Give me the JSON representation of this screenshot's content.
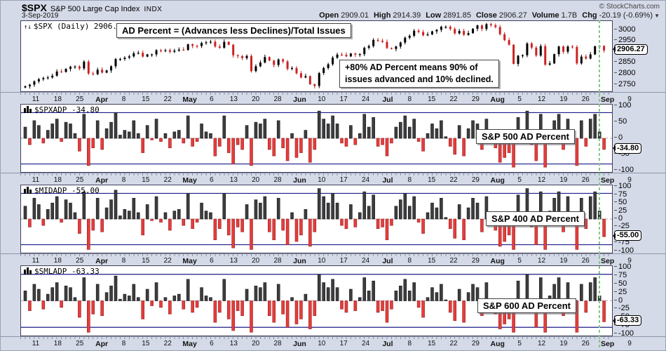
{
  "header": {
    "symbol": "$SPX",
    "name": "S&P 500 Large Cap Index",
    "exchange": "INDX",
    "copyright": "© StockCharts.com",
    "date": "3-Sep-2019",
    "quote": [
      {
        "label": "Open",
        "value": "2909.01"
      },
      {
        "label": "High",
        "value": "2914.39"
      },
      {
        "label": "Low",
        "value": "2891.85"
      },
      {
        "label": "Close",
        "value": "2906.27"
      },
      {
        "label": "Volume",
        "value": "1.7B"
      },
      {
        "label": "Chg",
        "value": "-20.19 (-0.69%)"
      }
    ],
    "chg_arrow": "▼"
  },
  "annotations": {
    "formula": "AD Percent = (Advances less Declines)/Total Issues",
    "explain": "+80% AD Percent means 90% of\nissues advanced and 10% declined.",
    "sp500": "S&P 500 AD Percent",
    "sp400": "S&P 400 AD Percent",
    "sp600": "S&P 600 AD Percent"
  },
  "panels": [
    {
      "label": "$SPX (Daily) 2906.27",
      "tag": "2906.27"
    },
    {
      "label": "$SPXADP -34.80",
      "tag": "-34.80"
    },
    {
      "label": "$MIDADP -55.00",
      "tag": "-55.00"
    },
    {
      "label": "$SMLADP -63.33",
      "tag": "-63.33"
    }
  ],
  "x_axis": {
    "labels": [
      "11",
      "18",
      "25",
      "Apr",
      "8",
      "15",
      "22",
      "May",
      "6",
      "13",
      "20",
      "28",
      "Jun",
      "10",
      "17",
      "24",
      "Jul",
      "8",
      "15",
      "22",
      "29",
      "Aug",
      "5",
      "12",
      "19",
      "26",
      "Sep",
      "9"
    ],
    "bold_indexes": [
      3,
      7,
      12,
      16,
      21,
      26
    ]
  },
  "chart_data": [
    {
      "type": "candlestick",
      "title": "$SPX (Daily)",
      "last": 2906.27,
      "ylim": [
        2720,
        3040
      ],
      "yticks": [
        3000,
        2950,
        2900,
        2850,
        2800,
        2750
      ],
      "x_tick_labels": [
        "11",
        "18",
        "25",
        "Apr",
        "8",
        "15",
        "22",
        "May",
        "6",
        "13",
        "20",
        "28",
        "Jun",
        "10",
        "17",
        "24",
        "Jul",
        "8",
        "15",
        "22",
        "29",
        "Aug",
        "5",
        "12",
        "19",
        "26",
        "Sep",
        "9"
      ],
      "close": [
        2743,
        2750,
        2765,
        2775,
        2780,
        2783,
        2791,
        2810,
        2808,
        2822,
        2832,
        2833,
        2824,
        2855,
        2801,
        2798,
        2818,
        2805,
        2815,
        2834,
        2867,
        2867,
        2873,
        2879,
        2893,
        2895,
        2878,
        2888,
        2888,
        2907,
        2906,
        2907,
        2900,
        2905,
        2910,
        2908,
        2934,
        2927,
        2926,
        2940,
        2943,
        2946,
        2924,
        2918,
        2945,
        2932,
        2884,
        2880,
        2871,
        2881,
        2812,
        2834,
        2851,
        2876,
        2860,
        2840,
        2865,
        2856,
        2822,
        2826,
        2802,
        2783,
        2789,
        2752,
        2744,
        2803,
        2826,
        2843,
        2873,
        2887,
        2886,
        2879,
        2892,
        2887,
        2889,
        2918,
        2926,
        2954,
        2950,
        2945,
        2917,
        2913,
        2924,
        2942,
        2964,
        2973,
        2996,
        2990,
        2975,
        2979,
        2993,
        3000,
        3014,
        3014,
        3004,
        2984,
        2995,
        2977,
        2985,
        3005,
        3020,
        3004,
        3026,
        3021,
        3013,
        2980,
        2953,
        2932,
        2845,
        2882,
        2884,
        2938,
        2919,
        2883,
        2926,
        2841,
        2847,
        2889,
        2924,
        2900,
        2924,
        2922,
        2847,
        2878,
        2869,
        2888,
        2925,
        2926,
        2906
      ]
    },
    {
      "type": "bar",
      "title": "$SPXADP (S&P 500 AD Percent)",
      "last": -34.8,
      "ylim": [
        -105,
        105
      ],
      "yticks": [
        100,
        50,
        0,
        -50,
        -100
      ],
      "hlines": [
        80,
        -80
      ],
      "values": [
        35,
        -20,
        55,
        40,
        -15,
        25,
        45,
        60,
        -10,
        50,
        45,
        15,
        -40,
        75,
        -85,
        -30,
        55,
        -35,
        30,
        50,
        80,
        10,
        25,
        20,
        55,
        15,
        -45,
        40,
        -5,
        60,
        -10,
        15,
        -30,
        20,
        25,
        -15,
        70,
        -25,
        -10,
        45,
        20,
        15,
        -55,
        -25,
        70,
        -45,
        -80,
        -20,
        -35,
        40,
        -85,
        50,
        45,
        60,
        -35,
        -55,
        55,
        -30,
        -70,
        15,
        -60,
        -45,
        25,
        -75,
        -35,
        85,
        60,
        45,
        70,
        45,
        -15,
        -25,
        40,
        -20,
        15,
        75,
        35,
        65,
        -25,
        -20,
        -55,
        -15,
        35,
        50,
        70,
        35,
        60,
        -10,
        -40,
        15,
        45,
        30,
        55,
        5,
        -25,
        -50,
        40,
        -55,
        30,
        55,
        45,
        -35,
        60,
        -15,
        -30,
        -75,
        -60,
        -45,
        -90,
        65,
        5,
        85,
        -20,
        -70,
        75,
        -90,
        20,
        55,
        75,
        -35,
        60,
        -10,
        -85,
        55,
        -25,
        60,
        75,
        20,
        -34.8
      ]
    },
    {
      "type": "bar",
      "title": "$MIDADP (S&P 400 AD Percent)",
      "last": -55.0,
      "ylim": [
        -105,
        105
      ],
      "yticks": [
        100,
        75,
        50,
        25,
        0,
        -25,
        -50,
        -75,
        -100
      ],
      "hlines": [
        80,
        -80
      ],
      "values": [
        40,
        -25,
        65,
        45,
        -20,
        30,
        50,
        70,
        -10,
        60,
        50,
        20,
        -45,
        85,
        -95,
        -35,
        65,
        -40,
        35,
        60,
        90,
        10,
        30,
        25,
        65,
        20,
        -50,
        45,
        -5,
        70,
        -10,
        20,
        -35,
        25,
        30,
        -20,
        80,
        -30,
        -10,
        50,
        25,
        20,
        -65,
        -30,
        80,
        -50,
        -90,
        -25,
        -40,
        45,
        -95,
        60,
        50,
        70,
        -40,
        -65,
        65,
        -35,
        -80,
        20,
        -70,
        -50,
        30,
        -85,
        -40,
        95,
        70,
        50,
        80,
        50,
        -20,
        -30,
        45,
        -25,
        20,
        85,
        40,
        75,
        -30,
        -25,
        -65,
        -20,
        40,
        60,
        80,
        40,
        70,
        -10,
        -45,
        20,
        50,
        35,
        65,
        5,
        -30,
        -60,
        45,
        -65,
        35,
        65,
        50,
        -40,
        70,
        -20,
        -35,
        -85,
        -70,
        -50,
        -95,
        75,
        5,
        95,
        -25,
        -80,
        85,
        -95,
        25,
        65,
        85,
        -40,
        70,
        -10,
        -95,
        65,
        -30,
        70,
        85,
        25,
        -55
      ]
    },
    {
      "type": "bar",
      "title": "$SMLADP (S&P 600 AD Percent)",
      "last": -63.33,
      "ylim": [
        -105,
        105
      ],
      "yticks": [
        100,
        75,
        50,
        25,
        0,
        -25,
        -50,
        -75,
        -100
      ],
      "hlines": [
        80,
        -80
      ],
      "values": [
        30,
        -30,
        50,
        35,
        -25,
        20,
        40,
        55,
        -20,
        45,
        40,
        10,
        -50,
        70,
        -95,
        -40,
        50,
        -45,
        25,
        45,
        75,
        5,
        20,
        15,
        50,
        10,
        -55,
        35,
        -15,
        55,
        -20,
        10,
        -40,
        15,
        20,
        -25,
        65,
        -35,
        -20,
        40,
        15,
        10,
        -65,
        -35,
        65,
        -55,
        -90,
        -30,
        -45,
        35,
        -95,
        45,
        40,
        55,
        -45,
        -65,
        50,
        -40,
        -80,
        10,
        -70,
        -55,
        20,
        -85,
        -45,
        80,
        55,
        40,
        65,
        40,
        -25,
        -35,
        35,
        -30,
        10,
        70,
        30,
        60,
        -35,
        -30,
        -65,
        -25,
        30,
        45,
        65,
        30,
        55,
        -20,
        -50,
        10,
        40,
        25,
        50,
        3,
        -35,
        -60,
        35,
        -65,
        25,
        50,
        40,
        -45,
        55,
        -25,
        -40,
        -85,
        -70,
        -55,
        -95,
        60,
        2,
        80,
        -30,
        -80,
        70,
        -95,
        15,
        50,
        70,
        -45,
        55,
        -20,
        -95,
        50,
        -35,
        55,
        70,
        15,
        -63.33
      ]
    }
  ]
}
